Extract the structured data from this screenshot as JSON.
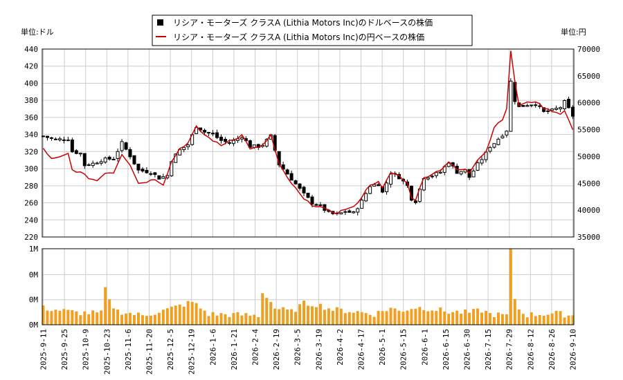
{
  "chart_data": {
    "type": "candlestick+line+bar",
    "legend": {
      "placement": "top-center",
      "items": [
        {
          "name": "リシア・モーターズ クラスA (Lithia Motors Inc)のドルベースの株価",
          "color": "#000000",
          "marker": "square"
        },
        {
          "name": "リシア・モーターズ クラスA (Lithia Motors Inc)の円ベースの株価",
          "color": "#cc0000",
          "marker": "line"
        }
      ]
    },
    "left_unit_label": "単位:ドル",
    "right_unit_label": "単位:円",
    "price_axis_left": {
      "min": 220,
      "max": 440,
      "ticks": [
        220,
        240,
        260,
        280,
        300,
        320,
        340,
        360,
        380,
        400,
        420,
        440
      ]
    },
    "price_axis_right": {
      "min": 35000,
      "max": 70000,
      "ticks": [
        35000,
        40000,
        45000,
        50000,
        55000,
        60000,
        65000,
        70000
      ]
    },
    "volume_axis": {
      "min": 0,
      "max": 1.0,
      "ticks": [
        0,
        0.33,
        0.66,
        1.0
      ],
      "tick_labels": [
        "0M",
        "0M",
        "0M",
        "1M"
      ]
    },
    "x_tick_labels": [
      "2025-9-11",
      "2025-9-25",
      "2025-10-9",
      "2025-10-23",
      "2025-11-6",
      "2025-11-20",
      "2025-12-5",
      "2025-12-19",
      "2026-1-6",
      "2026-1-21",
      "2026-2-4",
      "2026-2-19",
      "2026-3-5",
      "2026-3-19",
      "2026-4-2",
      "2026-4-17",
      "2026-5-1",
      "2026-5-15",
      "2026-6-1",
      "2026-6-15",
      "2026-6-30",
      "2026-7-15",
      "2026-7-29",
      "2026-8-12",
      "2026-8-26",
      "2026-9-10"
    ],
    "grid": true,
    "usd_close_keypoints": [
      [
        0,
        338
      ],
      [
        3,
        334
      ],
      [
        6,
        335
      ],
      [
        7,
        320
      ],
      [
        9,
        318
      ],
      [
        10,
        304
      ],
      [
        12,
        306
      ],
      [
        14,
        310
      ],
      [
        17,
        312
      ],
      [
        19,
        330
      ],
      [
        21,
        315
      ],
      [
        23,
        298
      ],
      [
        26,
        296
      ],
      [
        28,
        289
      ],
      [
        30,
        292
      ],
      [
        31,
        310
      ],
      [
        33,
        322
      ],
      [
        35,
        328
      ],
      [
        37,
        350
      ],
      [
        39,
        343
      ],
      [
        41,
        340
      ],
      [
        43,
        333
      ],
      [
        45,
        330
      ],
      [
        47,
        335
      ],
      [
        48,
        338
      ],
      [
        50,
        326
      ],
      [
        52,
        326
      ],
      [
        53,
        328
      ],
      [
        55,
        338
      ],
      [
        57,
        305
      ],
      [
        59,
        294
      ],
      [
        61,
        282
      ],
      [
        63,
        270
      ],
      [
        65,
        260
      ],
      [
        67,
        256
      ],
      [
        69,
        248
      ],
      [
        71,
        246
      ],
      [
        73,
        250
      ],
      [
        75,
        248
      ],
      [
        77,
        262
      ],
      [
        79,
        280
      ],
      [
        81,
        282
      ],
      [
        82,
        272
      ],
      [
        84,
        295
      ],
      [
        86,
        290
      ],
      [
        88,
        280
      ],
      [
        89,
        265
      ],
      [
        90,
        262
      ],
      [
        92,
        290
      ],
      [
        94,
        292
      ],
      [
        96,
        296
      ],
      [
        98,
        308
      ],
      [
        100,
        296
      ],
      [
        102,
        298
      ],
      [
        103,
        290
      ],
      [
        105,
        305
      ],
      [
        107,
        318
      ],
      [
        108,
        326
      ],
      [
        109,
        330
      ],
      [
        111,
        340
      ],
      [
        112,
        345
      ],
      [
        113,
        402
      ],
      [
        114,
        380
      ],
      [
        115,
        372
      ],
      [
        117,
        375
      ],
      [
        119,
        376
      ],
      [
        121,
        366
      ],
      [
        123,
        368
      ],
      [
        125,
        372
      ],
      [
        126,
        378
      ],
      [
        128,
        362
      ]
    ],
    "jpy_close_keypoints": [
      [
        0,
        51500
      ],
      [
        2,
        49500
      ],
      [
        4,
        49800
      ],
      [
        6,
        50500
      ],
      [
        7,
        47500
      ],
      [
        9,
        47000
      ],
      [
        11,
        46000
      ],
      [
        13,
        45500
      ],
      [
        15,
        47000
      ],
      [
        17,
        47000
      ],
      [
        19,
        50500
      ],
      [
        21,
        48500
      ],
      [
        23,
        45000
      ],
      [
        25,
        45300
      ],
      [
        27,
        45800
      ],
      [
        29,
        44800
      ],
      [
        31,
        49000
      ],
      [
        33,
        51500
      ],
      [
        35,
        52500
      ],
      [
        37,
        55500
      ],
      [
        39,
        54000
      ],
      [
        41,
        53000
      ],
      [
        43,
        52000
      ],
      [
        45,
        53000
      ],
      [
        47,
        53500
      ],
      [
        48,
        54000
      ],
      [
        50,
        51500
      ],
      [
        52,
        51600
      ],
      [
        53,
        52000
      ],
      [
        55,
        54000
      ],
      [
        57,
        48500
      ],
      [
        59,
        46000
      ],
      [
        61,
        44000
      ],
      [
        63,
        42000
      ],
      [
        65,
        41000
      ],
      [
        67,
        40600
      ],
      [
        69,
        39800
      ],
      [
        71,
        39500
      ],
      [
        73,
        40200
      ],
      [
        75,
        40500
      ],
      [
        77,
        42500
      ],
      [
        79,
        44800
      ],
      [
        81,
        45200
      ],
      [
        82,
        44000
      ],
      [
        84,
        47000
      ],
      [
        86,
        46400
      ],
      [
        88,
        45000
      ],
      [
        89,
        42400
      ],
      [
        90,
        42000
      ],
      [
        92,
        46000
      ],
      [
        94,
        46800
      ],
      [
        96,
        47500
      ],
      [
        98,
        49000
      ],
      [
        100,
        47500
      ],
      [
        102,
        47500
      ],
      [
        103,
        47000
      ],
      [
        105,
        49500
      ],
      [
        107,
        51000
      ],
      [
        108,
        53000
      ],
      [
        109,
        55500
      ],
      [
        111,
        57000
      ],
      [
        112,
        59000
      ],
      [
        113,
        69500
      ],
      [
        114,
        64000
      ],
      [
        115,
        59500
      ],
      [
        117,
        60000
      ],
      [
        119,
        60300
      ],
      [
        121,
        59000
      ],
      [
        123,
        58500
      ],
      [
        125,
        58000
      ],
      [
        126,
        58500
      ],
      [
        128,
        55000
      ]
    ],
    "volume_keypoints": [
      [
        0,
        0.22
      ],
      [
        8,
        0.16
      ],
      [
        14,
        0.15
      ],
      [
        15,
        0.48
      ],
      [
        16,
        0.3
      ],
      [
        18,
        0.18
      ],
      [
        24,
        0.12
      ],
      [
        30,
        0.2
      ],
      [
        36,
        0.3
      ],
      [
        40,
        0.14
      ],
      [
        48,
        0.13
      ],
      [
        52,
        0.12
      ],
      [
        53,
        0.42
      ],
      [
        54,
        0.38
      ],
      [
        56,
        0.22
      ],
      [
        60,
        0.17
      ],
      [
        63,
        0.28
      ],
      [
        66,
        0.27
      ],
      [
        70,
        0.2
      ],
      [
        76,
        0.17
      ],
      [
        80,
        0.14
      ],
      [
        84,
        0.22
      ],
      [
        86,
        0.18
      ],
      [
        90,
        0.23
      ],
      [
        94,
        0.21
      ],
      [
        98,
        0.17
      ],
      [
        103,
        0.16
      ],
      [
        106,
        0.19
      ],
      [
        108,
        0.14
      ],
      [
        112,
        0.12
      ],
      [
        113,
        1.0
      ],
      [
        114,
        0.35
      ],
      [
        115,
        0.2
      ],
      [
        117,
        0.13
      ],
      [
        120,
        0.14
      ],
      [
        124,
        0.15
      ],
      [
        128,
        0.12
      ]
    ]
  }
}
